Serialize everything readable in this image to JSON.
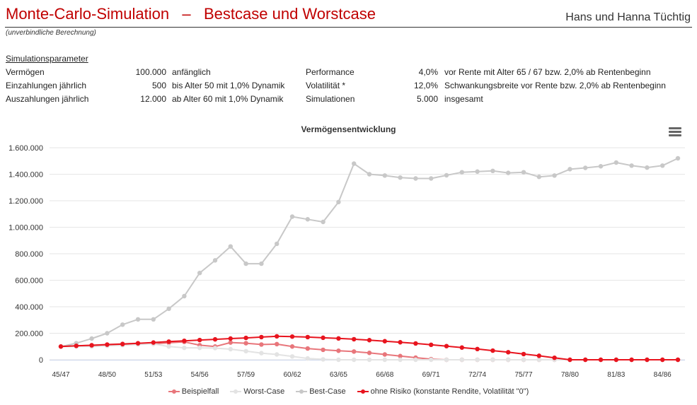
{
  "header": {
    "title": "Monte-Carlo-Simulation   –   Bestcase und Worstcase",
    "client": "Hans und Hanna Tüchtig",
    "note": "(unverbindliche Berechnung)"
  },
  "params": {
    "heading": "Simulationsparameter",
    "rows": [
      {
        "label": "Vermögen",
        "value": "100.000",
        "desc": "anfänglich",
        "label2": "Performance",
        "value2": "4,0%",
        "desc2": "vor Rente mit Alter 65 / 67 bzw. 2,0% ab Rentenbeginn"
      },
      {
        "label": "Einzahlungen jährlich",
        "value": "500",
        "desc": "bis Alter 50 mit 1,0% Dynamik",
        "label2": "Volatilität *",
        "value2": "12,0%",
        "desc2": "Schwankungsbreite vor Rente bzw. 2,0% ab Rentenbeginn"
      },
      {
        "label": "Auszahlungen jährlich",
        "value": "12.000",
        "desc": "ab Alter 60 mit 1,0% Dynamik",
        "label2": "Simulationen",
        "value2": "5.000",
        "desc2": "insgesamt"
      }
    ]
  },
  "menu": {
    "icon": "hamburger-menu-icon"
  },
  "chart_data": {
    "type": "line",
    "title": "Vermögensentwicklung",
    "xlabel": "",
    "ylabel": "",
    "ylim": [
      0,
      1600000
    ],
    "yticks": [
      "0",
      "200.000",
      "400.000",
      "600.000",
      "800.000",
      "1.000.000",
      "1.200.000",
      "1.400.000",
      "1.600.000"
    ],
    "xtick_labels": [
      "45/47",
      "48/50",
      "51/53",
      "54/56",
      "57/59",
      "60/62",
      "63/65",
      "66/68",
      "69/71",
      "72/74",
      "75/77",
      "78/80",
      "81/83",
      "84/86"
    ],
    "xtick_step": 3,
    "x": [
      "45/47",
      "46/48",
      "47/49",
      "48/50",
      "49/51",
      "50/52",
      "51/53",
      "52/54",
      "53/55",
      "54/56",
      "55/57",
      "56/58",
      "57/59",
      "58/60",
      "59/61",
      "60/62",
      "61/63",
      "62/64",
      "63/65",
      "64/66",
      "65/67",
      "66/68",
      "67/69",
      "68/70",
      "69/71",
      "70/72",
      "71/73",
      "72/74",
      "73/75",
      "74/76",
      "75/77",
      "76/78",
      "77/79",
      "78/80",
      "79/81",
      "80/82",
      "81/83",
      "82/84",
      "83/85",
      "84/86",
      "85/87"
    ],
    "grid": true,
    "legend_position": "bottom-center",
    "series": [
      {
        "name": "Beispielfall",
        "color": "#e8767b",
        "values": [
          100000,
          105000,
          110000,
          115000,
          120000,
          125000,
          120000,
          128000,
          135000,
          110000,
          100000,
          130000,
          125000,
          115000,
          118000,
          100000,
          85000,
          75000,
          68000,
          62000,
          52000,
          40000,
          28000,
          16000,
          5000,
          0,
          0,
          0,
          0,
          0,
          0,
          0,
          0,
          0,
          0,
          0,
          0,
          0,
          0,
          0,
          0
        ]
      },
      {
        "name": "Worst-Case",
        "color": "#e3e3e3",
        "values": [
          100000,
          100000,
          100000,
          105000,
          110000,
          115000,
          120000,
          100000,
          90000,
          90000,
          88000,
          80000,
          65000,
          50000,
          40000,
          25000,
          10000,
          3000,
          0,
          0,
          0,
          0,
          0,
          0,
          0,
          0,
          0,
          0,
          0,
          0,
          0,
          0,
          0,
          0,
          0,
          0,
          0,
          0,
          0,
          0,
          0
        ]
      },
      {
        "name": "Best-Case",
        "color": "#c8c8c8",
        "values": [
          100000,
          125000,
          160000,
          200000,
          265000,
          305000,
          305000,
          385000,
          480000,
          655000,
          750000,
          855000,
          725000,
          725000,
          875000,
          1080000,
          1060000,
          1040000,
          1190000,
          1480000,
          1400000,
          1390000,
          1375000,
          1368000,
          1368000,
          1392000,
          1415000,
          1420000,
          1425000,
          1410000,
          1415000,
          1380000,
          1390000,
          1438000,
          1448000,
          1460000,
          1488000,
          1465000,
          1450000,
          1465000,
          1520000
        ]
      },
      {
        "name": "ohne Risiko (konstante Rendite, Volatilität \"0\")",
        "color": "#e8141e",
        "values": [
          100000,
          105000,
          109000,
          114000,
          118000,
          124000,
          130000,
          137000,
          143000,
          149000,
          154000,
          160000,
          165000,
          171000,
          177000,
          175000,
          171000,
          166000,
          161000,
          155000,
          148000,
          140000,
          132000,
          123000,
          113000,
          103000,
          92000,
          81000,
          69000,
          57000,
          43000,
          30000,
          15000,
          0,
          0,
          0,
          0,
          0,
          0,
          0,
          0
        ]
      }
    ]
  }
}
